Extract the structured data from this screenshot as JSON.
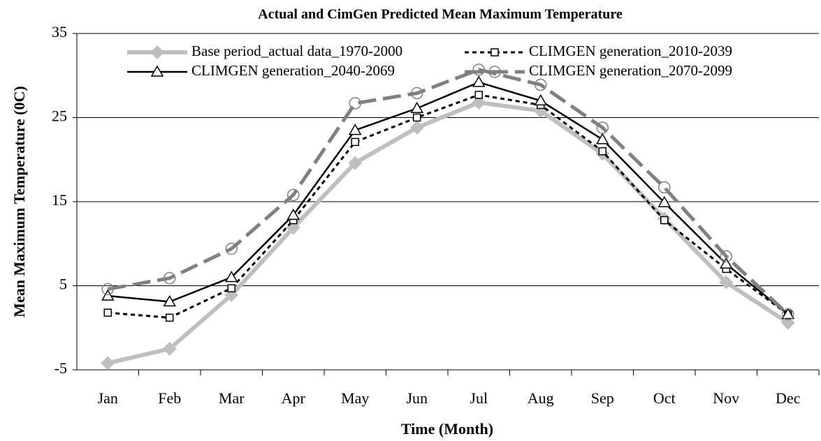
{
  "chart_data": {
    "type": "line",
    "title": "Actual and CimGen Predicted Mean Maximum Temperature",
    "x_label": "Time (Month)",
    "y_label": "Mean Maximum Temperature (0C)",
    "categories": [
      "Jan",
      "Feb",
      "Mar",
      "Apr",
      "May",
      "Jun",
      "Jul",
      "Aug",
      "Sep",
      "Oct",
      "Nov",
      "Dec"
    ],
    "ylim": [
      -5,
      35
    ],
    "yticks": [
      -5,
      5,
      15,
      25,
      35
    ],
    "grid": true,
    "series": [
      {
        "name": "Base period_actual data_1970-2000",
        "color": "#bfbfbf",
        "marker": "diamond",
        "values": [
          -4.2,
          -2.5,
          3.9,
          11.9,
          19.6,
          23.8,
          26.8,
          25.8,
          20.7,
          13.0,
          5.4,
          0.6
        ]
      },
      {
        "name": "CLIMGEN generation_2010-2039",
        "color": "#000000",
        "marker": "square",
        "values": [
          1.8,
          1.2,
          4.7,
          12.8,
          22.1,
          25.0,
          27.7,
          26.5,
          21.0,
          12.8,
          7.0,
          1.6
        ]
      },
      {
        "name": "CLIMGEN generation_2040-2069",
        "color": "#000000",
        "marker": "triangle",
        "values": [
          3.8,
          3.1,
          6.0,
          13.4,
          23.5,
          26.1,
          29.2,
          27.0,
          22.4,
          14.9,
          7.6,
          1.6
        ]
      },
      {
        "name": "CLIMGEN generation_2070-2099",
        "color": "#808080",
        "marker": "circle",
        "values": [
          4.6,
          5.9,
          9.4,
          15.8,
          26.7,
          27.9,
          30.7,
          28.9,
          23.8,
          16.7,
          8.5,
          1.6
        ]
      }
    ]
  }
}
